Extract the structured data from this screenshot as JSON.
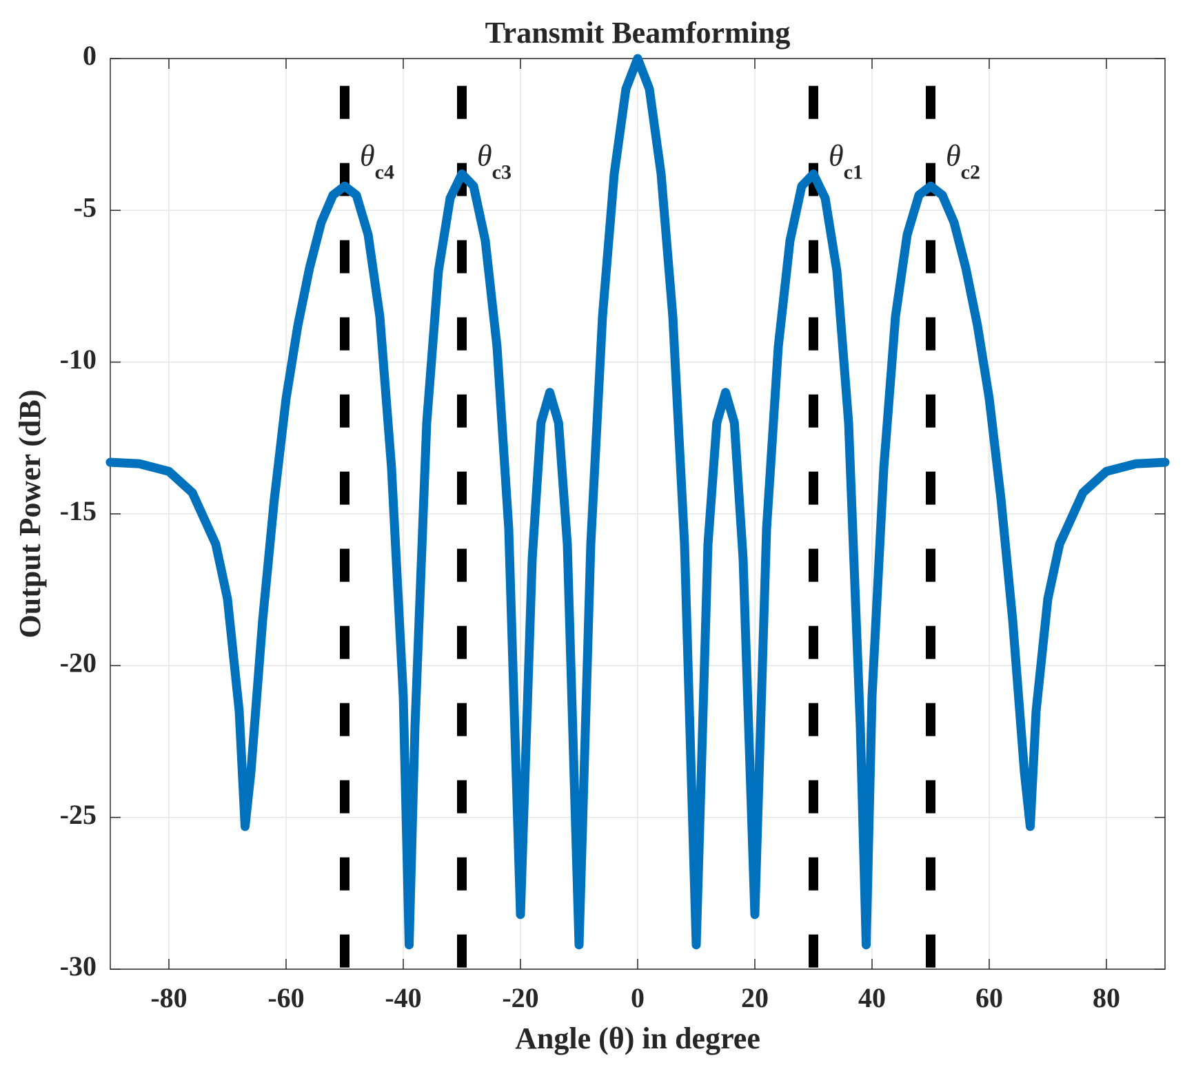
{
  "chart_data": {
    "type": "line",
    "title": "Transmit Beamforming",
    "xlabel": "Angle  (θ) in degree",
    "ylabel": "Output Power (dB)",
    "x": [
      -90,
      -85,
      -80,
      -76,
      -72,
      -70,
      -68,
      -67,
      -66,
      -64,
      -62,
      -60,
      -58,
      -56,
      -54,
      -52,
      -50,
      -48,
      -46,
      -44,
      -42,
      -40,
      -39,
      -38,
      -36,
      -34,
      -32,
      -30,
      -28,
      -26,
      -24,
      -22,
      -20,
      -18,
      -16.5,
      -15,
      -13.5,
      -12,
      -10,
      -8,
      -6,
      -4,
      -2,
      0,
      2,
      4,
      6,
      8,
      10,
      12,
      13.5,
      15,
      16.5,
      18,
      20,
      22,
      24,
      26,
      28,
      30,
      32,
      34,
      36,
      38,
      39,
      40,
      42,
      44,
      46,
      48,
      50,
      52,
      54,
      56,
      58,
      60,
      62,
      64,
      66,
      67,
      68,
      70,
      72,
      76,
      80,
      85,
      90
    ],
    "values": [
      -13.3,
      -13.35,
      -13.6,
      -14.3,
      -16,
      -17.8,
      -21.5,
      -25.3,
      -23.5,
      -18.5,
      -14.5,
      -11.2,
      -8.8,
      -6.9,
      -5.4,
      -4.5,
      -4.2,
      -4.5,
      -5.8,
      -8.5,
      -13.5,
      -21,
      -29.2,
      -22,
      -12,
      -7,
      -4.6,
      -3.8,
      -4.2,
      -6,
      -9.5,
      -15.5,
      -28.2,
      -16.5,
      -12,
      -11,
      -12,
      -16,
      -29.2,
      -16,
      -8.5,
      -3.8,
      -1,
      0,
      -1,
      -3.8,
      -8.5,
      -16,
      -29.2,
      -16,
      -12,
      -11,
      -12,
      -16.5,
      -28.2,
      -15.5,
      -9.5,
      -6,
      -4.2,
      -3.8,
      -4.6,
      -7,
      -12,
      -22,
      -29.2,
      -21,
      -13.5,
      -8.5,
      -5.8,
      -4.5,
      -4.2,
      -4.5,
      -5.4,
      -6.9,
      -8.8,
      -11.2,
      -14.5,
      -18.5,
      -23.5,
      -25.3,
      -21.5,
      -17.8,
      -16,
      -14.3,
      -13.6,
      -13.35,
      -13.3
    ],
    "color": "#0072bd",
    "markers": {
      "x": [
        30,
        50,
        -30,
        -50
      ],
      "symbol": [
        "θ",
        "θ",
        "θ",
        "θ"
      ],
      "labels": [
        "c1",
        "c2",
        "c3",
        "c4"
      ],
      "ymax": -0.9,
      "color": "#000000"
    },
    "xlim": [
      -90,
      90
    ],
    "xticks": [
      -80,
      -60,
      -40,
      -20,
      0,
      20,
      40,
      60,
      80
    ],
    "ylim": [
      -30,
      0
    ],
    "yticks": [
      -30,
      -25,
      -20,
      -15,
      -10,
      -5,
      0
    ],
    "grid": true
  }
}
